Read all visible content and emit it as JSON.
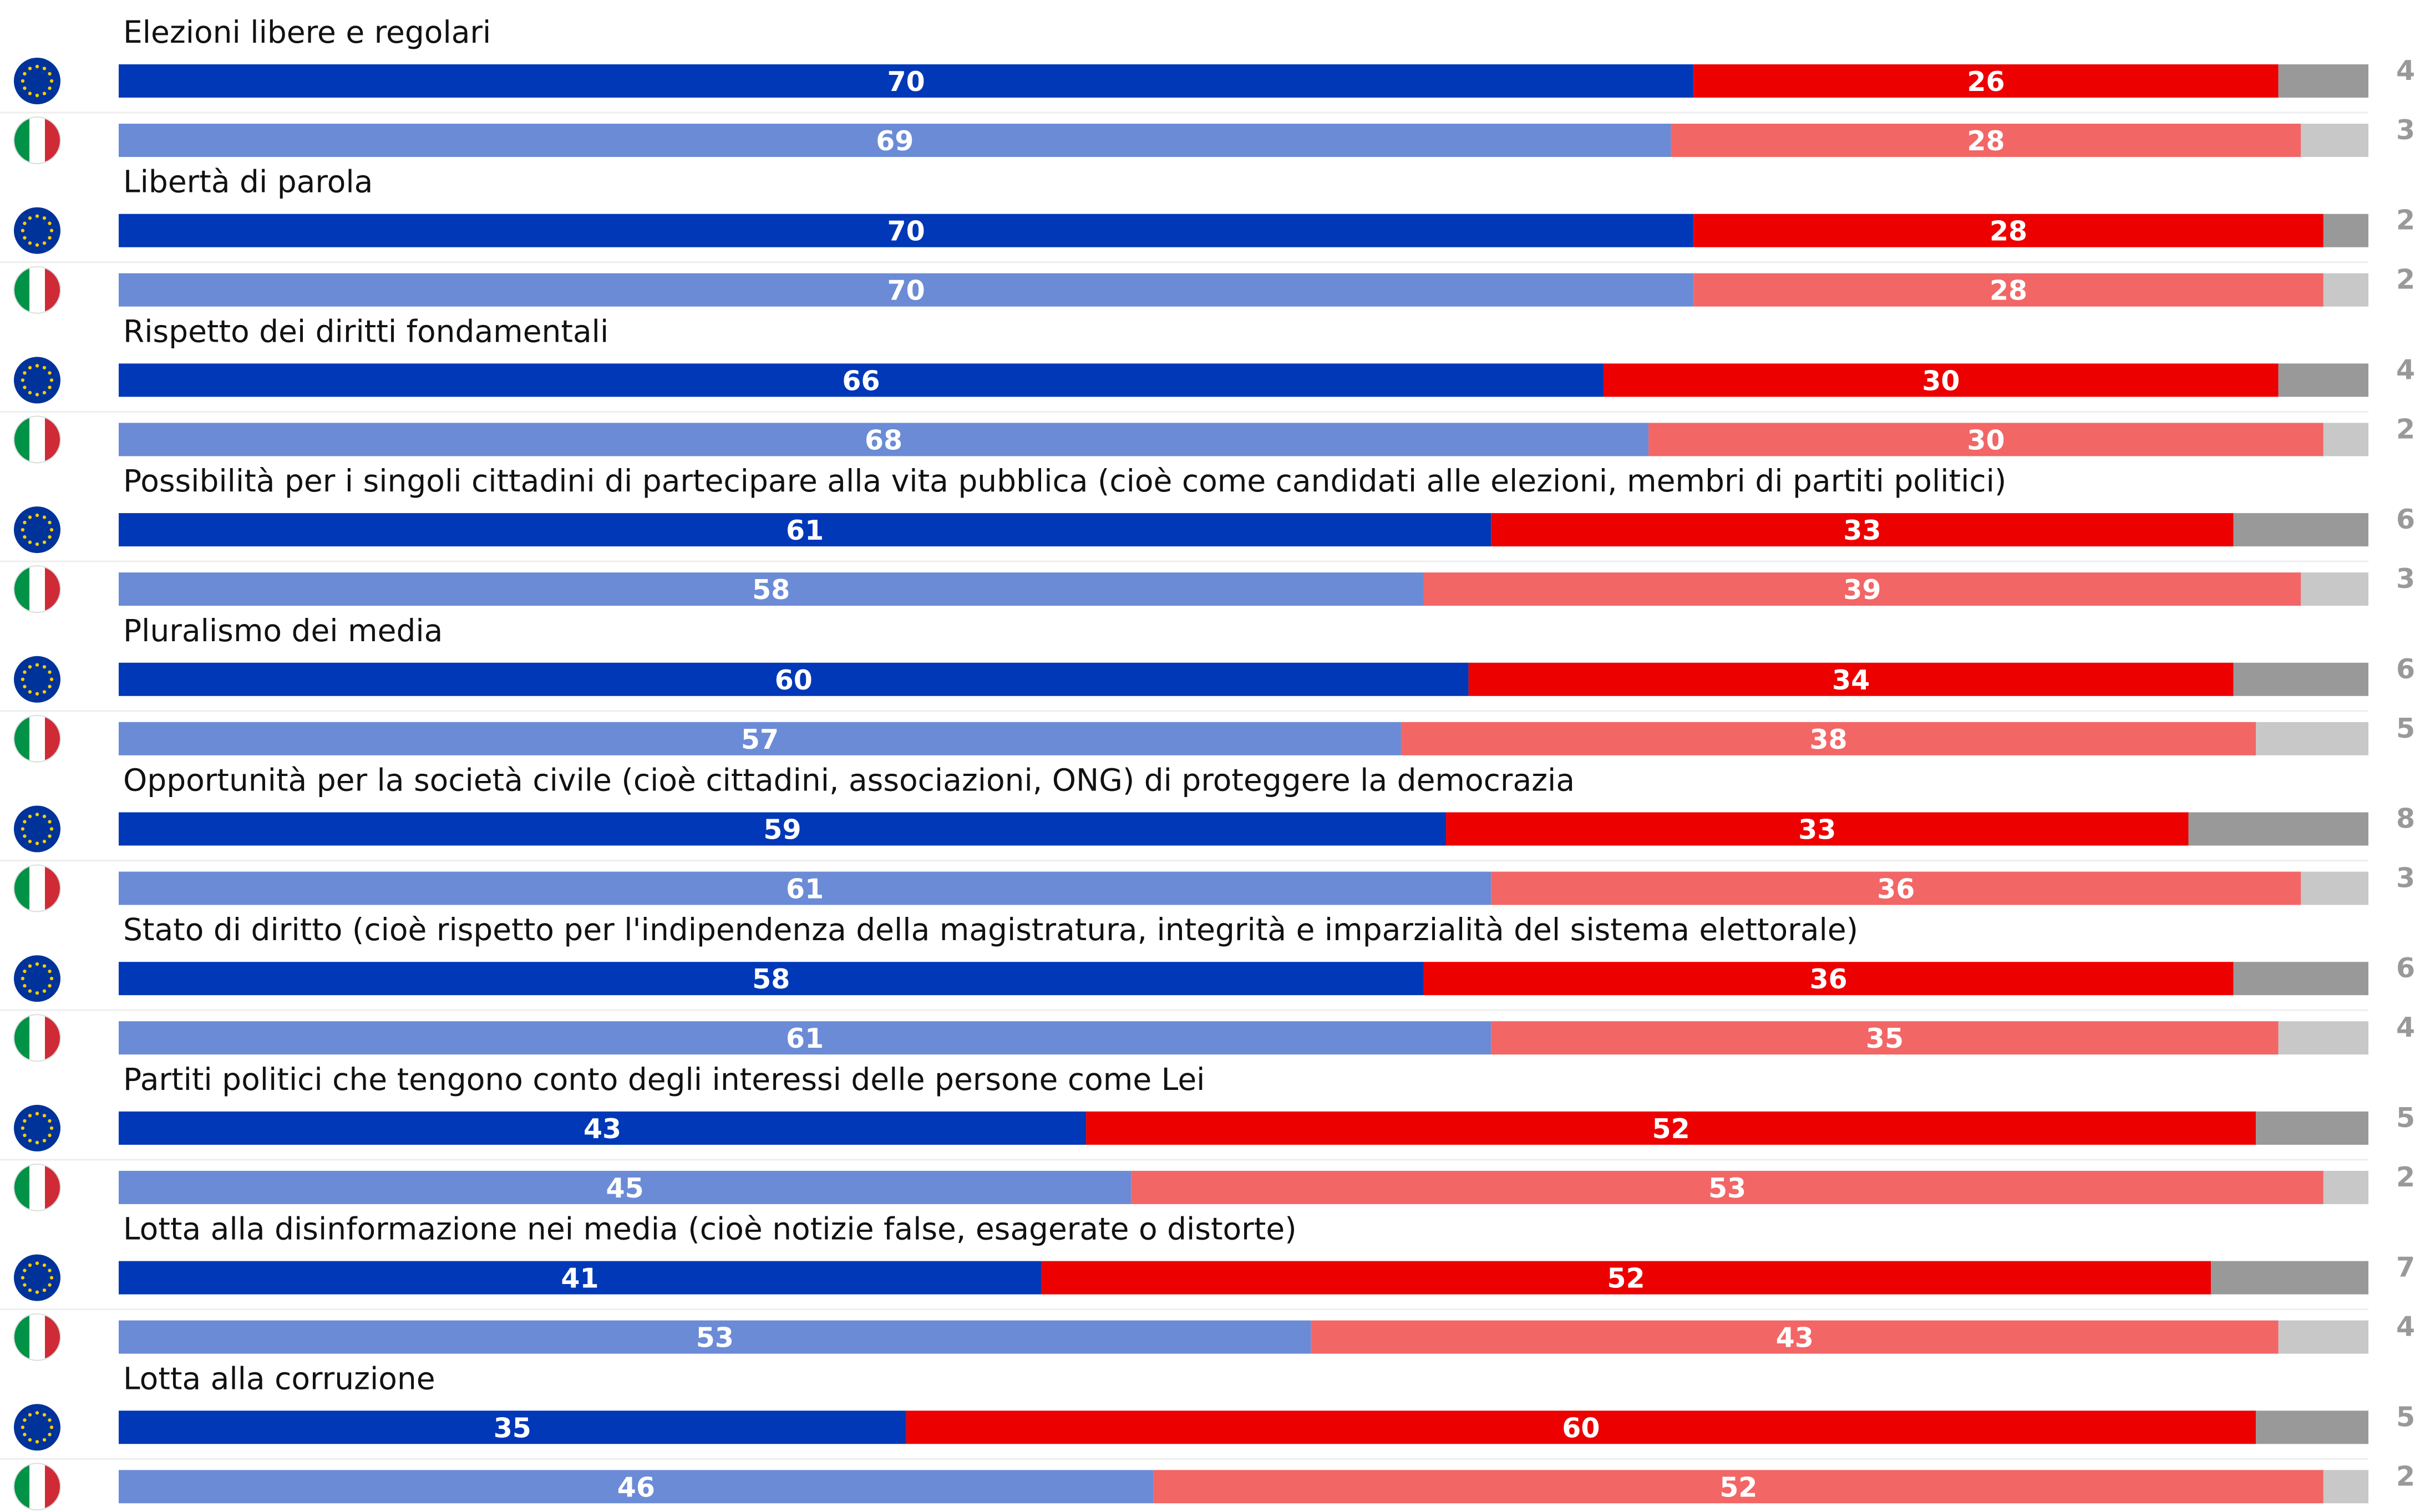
{
  "chart_data": {
    "type": "bar",
    "orientation": "horizontal",
    "stacked": true,
    "xlim": [
      0,
      100
    ],
    "groups": [
      "EU",
      "IT"
    ],
    "series": [
      {
        "name": "",
        "color_eu": "#0038b7",
        "color_it": "#6b8bd6"
      },
      {
        "name": "",
        "color_eu": "#ec0000",
        "color_it": "#f26666"
      },
      {
        "name": "",
        "color_eu": "#999999",
        "color_it": "#c8c8c8"
      }
    ],
    "categories": [
      {
        "label": "Elezioni libere e regolari",
        "rows": [
          {
            "group": "EU",
            "values": [
              70,
              26,
              4
            ]
          },
          {
            "group": "IT",
            "values": [
              69,
              28,
              3
            ]
          }
        ]
      },
      {
        "label": "Libertà di parola",
        "rows": [
          {
            "group": "EU",
            "values": [
              70,
              28,
              2
            ]
          },
          {
            "group": "IT",
            "values": [
              70,
              28,
              2
            ]
          }
        ]
      },
      {
        "label": "Rispetto dei diritti fondamentali",
        "rows": [
          {
            "group": "EU",
            "values": [
              66,
              30,
              4
            ]
          },
          {
            "group": "IT",
            "values": [
              68,
              30,
              2
            ]
          }
        ]
      },
      {
        "label": "Possibilità per i singoli cittadini di partecipare alla vita pubblica (cioè come candidati alle elezioni, membri di partiti politici)",
        "rows": [
          {
            "group": "EU",
            "values": [
              61,
              33,
              6
            ]
          },
          {
            "group": "IT",
            "values": [
              58,
              39,
              3
            ]
          }
        ]
      },
      {
        "label": "Pluralismo dei media",
        "rows": [
          {
            "group": "EU",
            "values": [
              60,
              34,
              6
            ]
          },
          {
            "group": "IT",
            "values": [
              57,
              38,
              5
            ]
          }
        ]
      },
      {
        "label": "Opportunità per la società civile (cioè cittadini, associazioni, ONG) di proteggere la democrazia",
        "rows": [
          {
            "group": "EU",
            "values": [
              59,
              33,
              8
            ]
          },
          {
            "group": "IT",
            "values": [
              61,
              36,
              3
            ]
          }
        ]
      },
      {
        "label": "Stato di diritto (cioè rispetto per l'indipendenza della magistratura, integrità e imparzialità del sistema elettorale)",
        "rows": [
          {
            "group": "EU",
            "values": [
              58,
              36,
              6
            ]
          },
          {
            "group": "IT",
            "values": [
              61,
              35,
              4
            ]
          }
        ]
      },
      {
        "label": "Partiti politici che tengono conto degli interessi delle persone come Lei",
        "rows": [
          {
            "group": "EU",
            "values": [
              43,
              52,
              5
            ]
          },
          {
            "group": "IT",
            "values": [
              45,
              53,
              2
            ]
          }
        ]
      },
      {
        "label": "Lotta alla disinformazione nei media (cioè notizie false, esagerate o distorte)",
        "rows": [
          {
            "group": "EU",
            "values": [
              41,
              52,
              7
            ]
          },
          {
            "group": "IT",
            "values": [
              53,
              43,
              4
            ]
          }
        ]
      },
      {
        "label": "Lotta alla corruzione",
        "rows": [
          {
            "group": "EU",
            "values": [
              35,
              60,
              5
            ]
          },
          {
            "group": "IT",
            "values": [
              46,
              52,
              2
            ]
          }
        ]
      }
    ]
  },
  "icons": {
    "EU": {
      "name": "eu-flag-icon",
      "colors": [
        "#003399",
        "#ffcc00"
      ]
    },
    "IT": {
      "name": "italy-flag-icon",
      "colors": [
        "#009246",
        "#ffffff",
        "#ce2b37"
      ]
    }
  }
}
